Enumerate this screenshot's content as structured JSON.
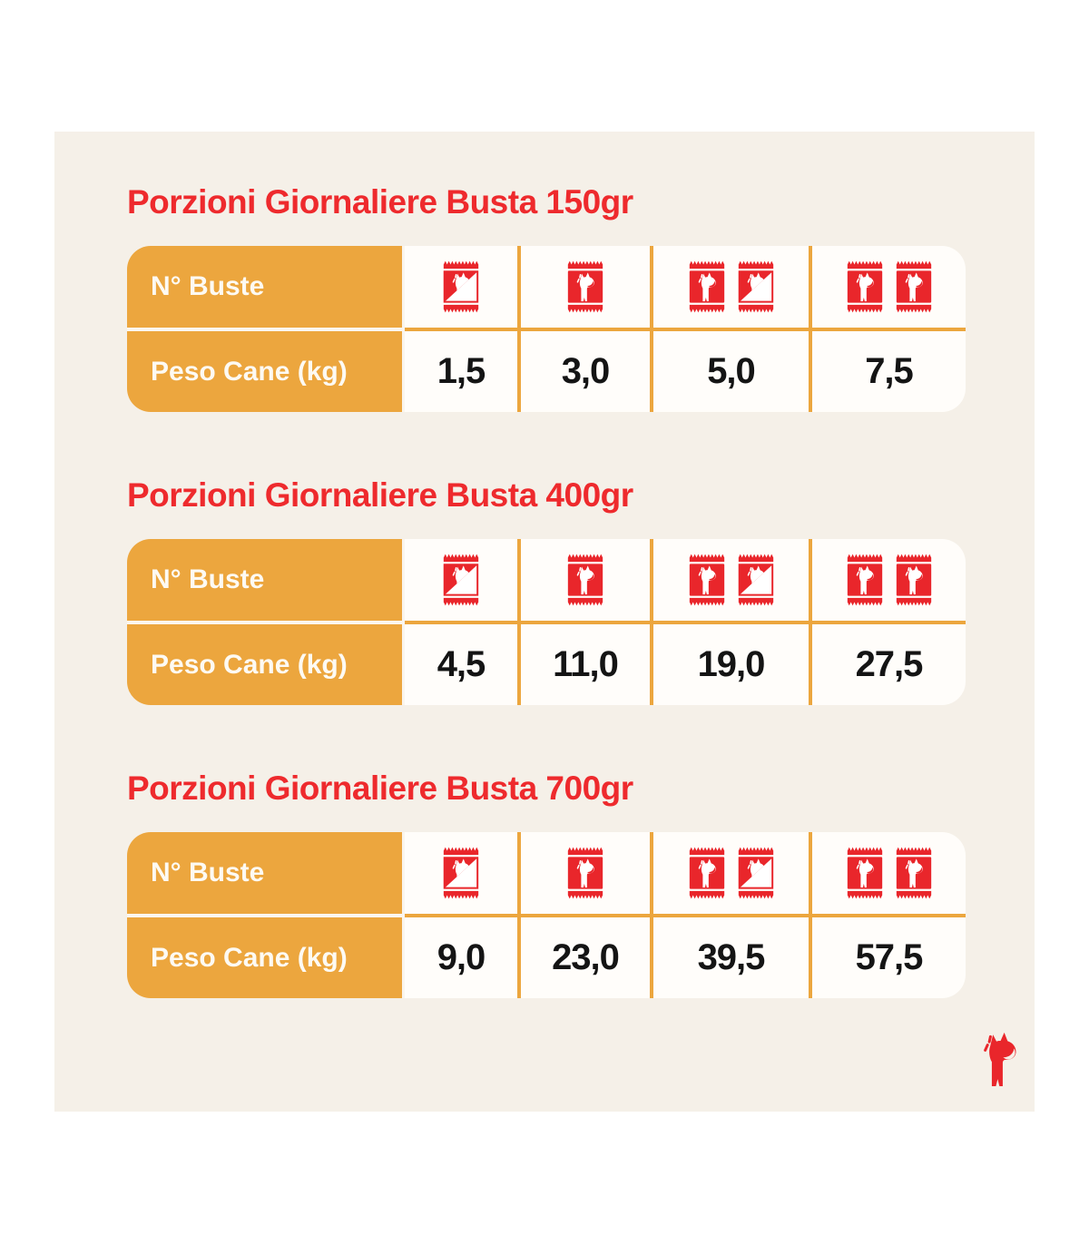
{
  "colors": {
    "title_red": "#ee2a2d",
    "pouch_red": "#e9262b",
    "orange": "#eca63e",
    "panel_cream": "#f5f0e8",
    "cell_white": "#fffdfa",
    "value_black": "#141414"
  },
  "sections": [
    {
      "title": "Porzioni Giornaliere Busta 150gr",
      "row_labels": {
        "buste": "N° Buste",
        "peso": "Peso Cane (kg)"
      },
      "columns": [
        {
          "icons": [
            "pouch-half"
          ],
          "peso": "1,5"
        },
        {
          "icons": [
            "pouch-full"
          ],
          "peso": "3,0"
        },
        {
          "icons": [
            "pouch-full",
            "pouch-half"
          ],
          "peso": "5,0"
        },
        {
          "icons": [
            "pouch-full",
            "pouch-full"
          ],
          "peso": "7,5"
        }
      ]
    },
    {
      "title": "Porzioni Giornaliere Busta 400gr",
      "row_labels": {
        "buste": "N° Buste",
        "peso": "Peso Cane (kg)"
      },
      "columns": [
        {
          "icons": [
            "pouch-half"
          ],
          "peso": "4,5"
        },
        {
          "icons": [
            "pouch-full"
          ],
          "peso": "11,0"
        },
        {
          "icons": [
            "pouch-full",
            "pouch-half"
          ],
          "peso": "19,0"
        },
        {
          "icons": [
            "pouch-full",
            "pouch-full"
          ],
          "peso": "27,5"
        }
      ]
    },
    {
      "title": "Porzioni Giornaliere Busta 700gr",
      "row_labels": {
        "buste": "N° Buste",
        "peso": "Peso Cane (kg)"
      },
      "columns": [
        {
          "icons": [
            "pouch-half"
          ],
          "peso": "9,0"
        },
        {
          "icons": [
            "pouch-full"
          ],
          "peso": "23,0"
        },
        {
          "icons": [
            "pouch-full",
            "pouch-half"
          ],
          "peso": "39,5"
        },
        {
          "icons": [
            "pouch-full",
            "pouch-full"
          ],
          "peso": "57,5"
        }
      ]
    }
  ],
  "logo": {
    "icon": "dog-logo"
  }
}
